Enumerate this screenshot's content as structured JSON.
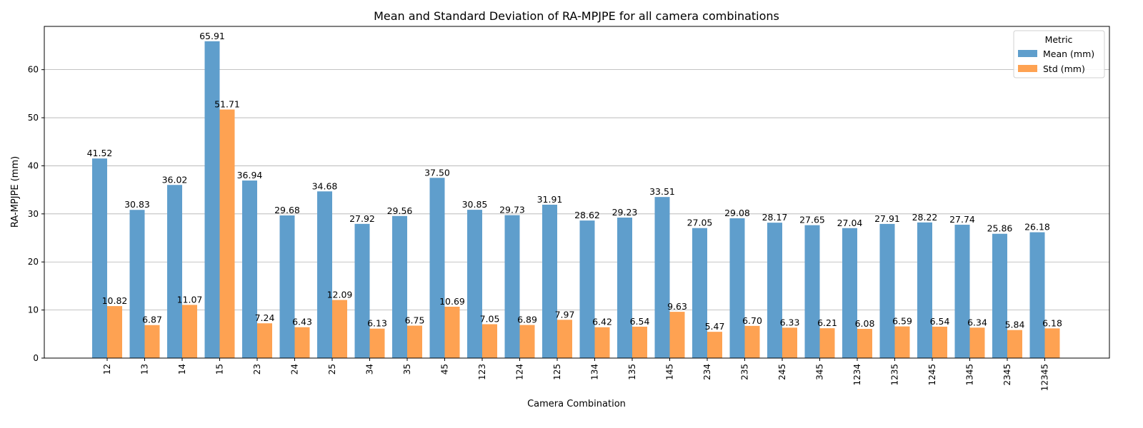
{
  "chart_data": {
    "type": "bar",
    "title": "Mean and Standard Deviation of RA-MPJPE for all camera combinations",
    "xlabel": "Camera Combination",
    "ylabel": "RA-MPJPE (mm)",
    "ylim": [
      0,
      69
    ],
    "yticks": [
      0,
      10,
      20,
      30,
      40,
      50,
      60
    ],
    "grid": "y",
    "legend": {
      "title": "Metric",
      "placement": "top-right"
    },
    "categories": [
      "12",
      "13",
      "14",
      "15",
      "23",
      "24",
      "25",
      "34",
      "35",
      "45",
      "123",
      "124",
      "125",
      "134",
      "135",
      "145",
      "234",
      "235",
      "245",
      "345",
      "1234",
      "1235",
      "1245",
      "1345",
      "2345",
      "12345"
    ],
    "series": [
      {
        "name": "Mean (mm)",
        "color": "#5f9ecc",
        "values": [
          41.52,
          30.83,
          36.02,
          65.91,
          36.94,
          29.68,
          34.68,
          27.92,
          29.56,
          37.5,
          30.85,
          29.73,
          31.91,
          28.62,
          29.23,
          33.51,
          27.05,
          29.08,
          28.17,
          27.65,
          27.04,
          27.91,
          28.22,
          27.74,
          25.86,
          26.18
        ],
        "labels": [
          "41.52",
          "30.83",
          "36.02",
          "65.91",
          "36.94",
          "29.68",
          "34.68",
          "27.92",
          "29.56",
          "37.50",
          "30.85",
          "29.73",
          "31.91",
          "28.62",
          "29.23",
          "33.51",
          "27.05",
          "29.08",
          "28.17",
          "27.65",
          "27.04",
          "27.91",
          "28.22",
          "27.74",
          "25.86",
          "26.18"
        ]
      },
      {
        "name": "Std (mm)",
        "color": "#fea252",
        "values": [
          10.82,
          6.87,
          11.07,
          51.71,
          7.24,
          6.43,
          12.09,
          6.13,
          6.75,
          10.69,
          7.05,
          6.89,
          7.97,
          6.42,
          6.54,
          9.63,
          5.47,
          6.7,
          6.33,
          6.21,
          6.08,
          6.59,
          6.54,
          6.34,
          5.84,
          6.18
        ],
        "labels": [
          "10.82",
          "6.87",
          "11.07",
          "51.71",
          "7.24",
          "6.43",
          "12.09",
          "6.13",
          "6.75",
          "10.69",
          "7.05",
          "6.89",
          "7.97",
          "6.42",
          "6.54",
          "9.63",
          "5.47",
          "6.70",
          "6.33",
          "6.21",
          "6.08",
          "6.59",
          "6.54",
          "6.34",
          "5.84",
          "6.18"
        ]
      }
    ]
  }
}
